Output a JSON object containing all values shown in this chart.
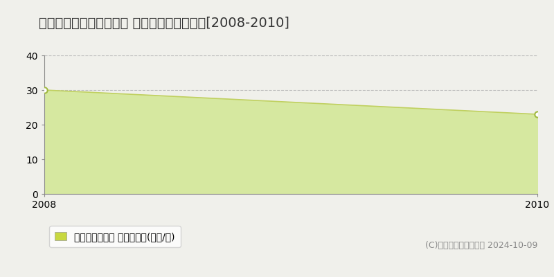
{
  "title": "北九州市小倉北区寿山町 マンション価格推移[2008-2010]",
  "years": [
    2008,
    2010
  ],
  "values": [
    30,
    23
  ],
  "fill_color": "#d6e8a0",
  "line_color": "#c0d060",
  "marker_color": "#ffffff",
  "marker_edge_color": "#a0b840",
  "ylim": [
    0,
    40
  ],
  "yticks": [
    0,
    10,
    20,
    30,
    40
  ],
  "xlim": [
    2008,
    2010
  ],
  "xticks": [
    2008,
    2010
  ],
  "grid_color": "#bbbbbb",
  "background_color": "#f0f0eb",
  "plot_bg_color": "#f0f0eb",
  "legend_label": "マンション価格 平均坪単価(万円/坪)",
  "legend_color": "#c8d840",
  "copyright_text": "(C)土地価格ドットコム 2024-10-09",
  "title_fontsize": 14,
  "tick_fontsize": 10,
  "legend_fontsize": 10,
  "copyright_fontsize": 9
}
